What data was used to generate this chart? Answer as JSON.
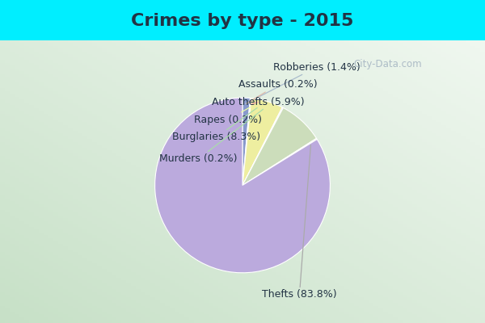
{
  "title": "Crimes by type - 2015",
  "slices": [
    {
      "label": "Robberies (1.4%)",
      "value": 1.4,
      "color": "#99aadd"
    },
    {
      "label": "Assaults (0.2%)",
      "value": 0.2,
      "color": "#aaccee"
    },
    {
      "label": "Auto thefts (5.9%)",
      "value": 5.9,
      "color": "#eeeea0"
    },
    {
      "label": "Rapes (0.2%)",
      "value": 0.2,
      "color": "#ddeecc"
    },
    {
      "label": "Burglaries (8.3%)",
      "value": 8.3,
      "color": "#ddeecc"
    },
    {
      "label": "Murders (0.2%)",
      "value": 0.2,
      "color": "#ddeecc"
    },
    {
      "label": "Thefts (83.8%)",
      "value": 83.8,
      "color": "#bbaadd"
    }
  ],
  "bg_top_color": "#00eeff",
  "title_color": "#223344",
  "title_fontsize": 16,
  "label_fontsize": 9,
  "watermark": "City-Data.com"
}
